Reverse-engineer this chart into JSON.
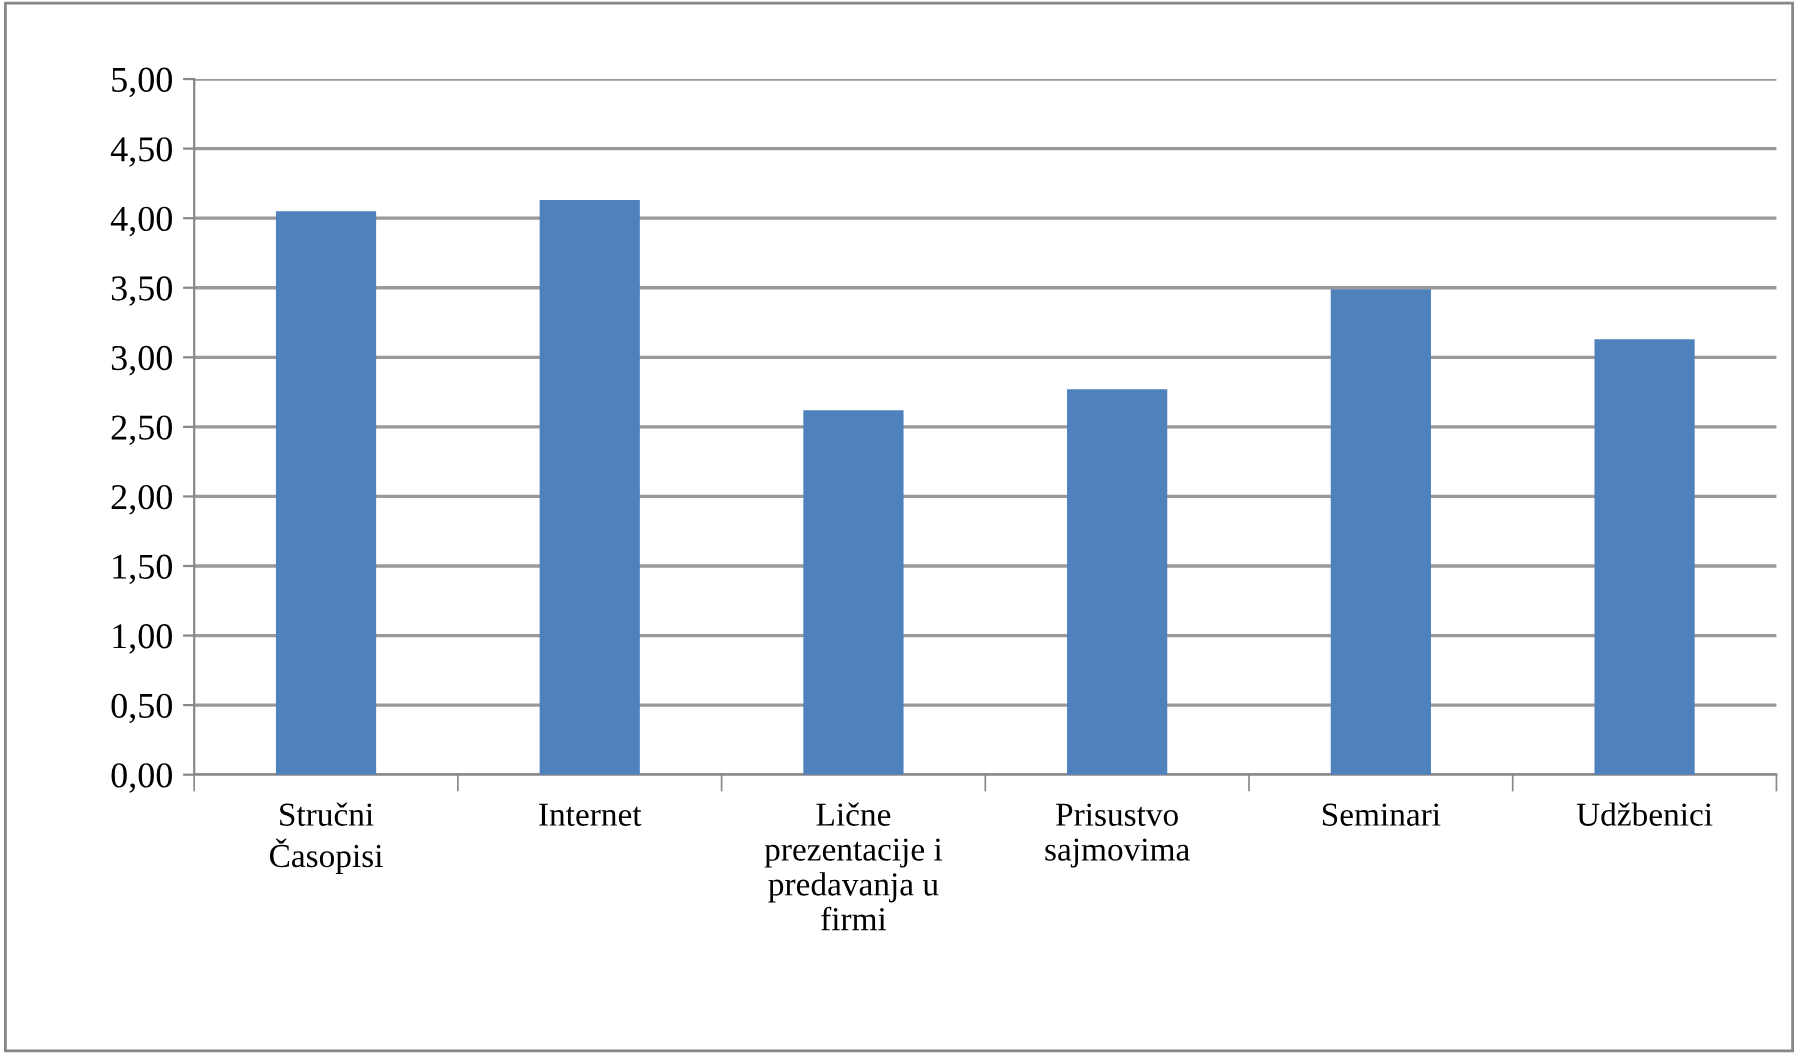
{
  "chart_data": {
    "type": "bar",
    "categories": [
      "Stručni\nČasopisi",
      "Internet",
      "Lične\nprezentacije i\npredavanja u\nfirmi",
      "Prisustvo\nsajmovima",
      "Seminari",
      "Udžbenici"
    ],
    "values": [
      4.05,
      4.13,
      2.62,
      2.77,
      3.49,
      3.13
    ],
    "color": "#4f81bd",
    "ylim": [
      0,
      5
    ],
    "yticks": [
      {
        "value": 0,
        "label": "0,00"
      },
      {
        "value": 0.5,
        "label": "0,50"
      },
      {
        "value": 1,
        "label": "1,00"
      },
      {
        "value": 1.5,
        "label": "1,50"
      },
      {
        "value": 2,
        "label": "2,00"
      },
      {
        "value": 2.5,
        "label": "2,50"
      },
      {
        "value": 3,
        "label": "3,00"
      },
      {
        "value": 3.5,
        "label": "3,50"
      },
      {
        "value": 4,
        "label": "4,00"
      },
      {
        "value": 4.5,
        "label": "4,50"
      },
      {
        "value": 5,
        "label": "5,00"
      }
    ],
    "grid": "y",
    "legend": false
  }
}
